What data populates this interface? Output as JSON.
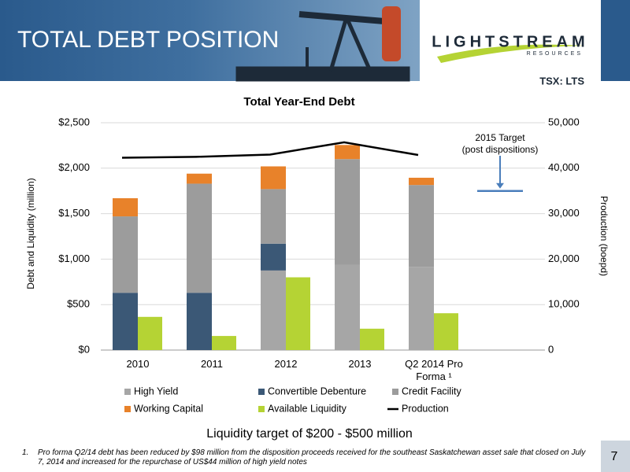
{
  "header": {
    "title": "TOTAL DEBT POSITION",
    "logo": "LIGHTSTREAM",
    "logo_sub": "RESOURCES",
    "ticker": "TSX: LTS"
  },
  "chart_data": {
    "type": "bar",
    "title": "Total Year-End Debt",
    "subtitle": "Liquidity target of $200 - $500 million",
    "y_label": "Debt and Liquidity (million)",
    "y2_label": "Production (boepd)",
    "categories": [
      "2010",
      "2011",
      "2012",
      "2013",
      "Q2 2014 Pro Forma ¹",
      null
    ],
    "series": [
      {
        "name": "High Yield",
        "color": "#a6a6a6",
        "stacked": true,
        "values": [
          0,
          0,
          875,
          935,
          915,
          null
        ]
      },
      {
        "name": "Convertible Debenture",
        "color": "#3b5876",
        "stacked": true,
        "values": [
          630,
          630,
          295,
          0,
          0,
          null
        ]
      },
      {
        "name": "Credit Facility",
        "color": "#9c9c9c",
        "stacked": true,
        "values": [
          840,
          1200,
          600,
          1165,
          900,
          null
        ]
      },
      {
        "name": "Working Capital",
        "color": "#e8822a",
        "stacked": true,
        "values": [
          200,
          110,
          250,
          155,
          80,
          null
        ]
      },
      {
        "name": "Available Liquidity",
        "color": "#b5d334",
        "stacked": false,
        "values": [
          365,
          155,
          800,
          235,
          405,
          null
        ]
      },
      {
        "name": "Production",
        "color": "#000000",
        "axis": "y2",
        "values": [
          42300,
          42500,
          43000,
          45700,
          42900,
          null
        ]
      }
    ],
    "ylim": [
      0,
      2500
    ],
    "yticks": [
      {
        "value": 0,
        "label": "$0"
      },
      {
        "value": 500,
        "label": "$500"
      },
      {
        "value": 1000,
        "label": "$1,000"
      },
      {
        "value": 1500,
        "label": "$1,500"
      },
      {
        "value": 2000,
        "label": "$2,000"
      },
      {
        "value": 2500,
        "label": "$2,500"
      }
    ],
    "y2lim": [
      0,
      50000
    ],
    "y2ticks": [
      0,
      {
        "value": 10000,
        "label": "10,000"
      },
      {
        "value": 20000,
        "label": "20,000"
      },
      {
        "value": 30000,
        "label": "30,000"
      },
      {
        "value": 40000,
        "label": "40,000"
      },
      {
        "value": 50000,
        "label": "50,000"
      }
    ],
    "target": {
      "value": 35000,
      "label": "2015 Target",
      "sublabel": "(post dispositions)",
      "color": "#4a7ebb"
    },
    "grid": true
  },
  "footnote": {
    "number": "1.",
    "text": "Pro forma Q2/14 debt has been reduced by $98 million from the disposition proceeds received for the southeast Saskatchewan asset sale that closed on July 7, 2014 and increased for the repurchase of US$44 million of high yield notes"
  },
  "page_number": "7"
}
